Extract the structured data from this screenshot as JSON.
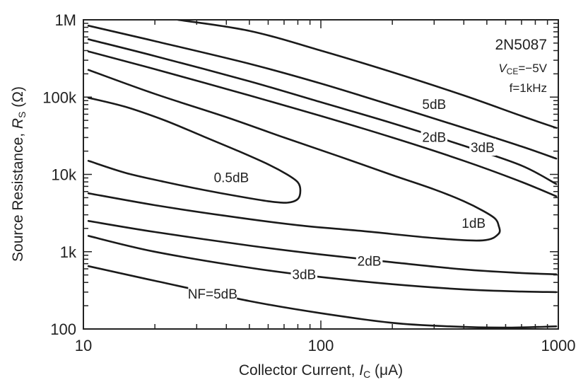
{
  "chart_data": {
    "type": "line",
    "title": "",
    "xlabel": "Collector Current, I_C (μA)",
    "ylabel": "Source Resistance, R_S (Ω)",
    "x_scale": "log",
    "y_scale": "log",
    "xlim": [
      10,
      1000
    ],
    "ylim": [
      100,
      1000000
    ],
    "grid": false,
    "x_tick_labels": [
      "10",
      "100",
      "1000"
    ],
    "y_tick_labels": [
      "100",
      "1k",
      "10k",
      "100k",
      "1M"
    ],
    "annotation": {
      "device": "2N5087",
      "vce_prefix": "V",
      "vce_sub": "CE",
      "vce_value": "=−5V",
      "freq": "f=1kHz"
    },
    "series": [
      {
        "label": "0.5dB",
        "x": [
          10.5,
          15,
          22,
          32,
          45,
          60,
          72,
          80,
          82,
          80,
          72,
          60,
          45,
          32,
          22,
          15,
          10.5
        ],
        "y": [
          15000,
          10500,
          8000,
          6300,
          5200,
          4500,
          4300,
          4800,
          6200,
          7900,
          10000,
          13500,
          20000,
          31000,
          50000,
          75000,
          98000
        ]
      },
      {
        "label": "1dB",
        "x": [
          10.5,
          20,
          40,
          80,
          150,
          300,
          480,
          560,
          560,
          540,
          480,
          400,
          300,
          200,
          120,
          70,
          40,
          20,
          10.5
        ],
        "y": [
          5700,
          4000,
          2900,
          2200,
          1850,
          1500,
          1400,
          1700,
          2200,
          2700,
          3400,
          4500,
          6400,
          9800,
          17000,
          30000,
          55000,
          110000,
          225000
        ]
      },
      {
        "label": "2dB",
        "x": [
          10.5,
          20,
          50,
          100,
          200,
          400,
          700,
          980
        ],
        "y": [
          2500,
          1800,
          1200,
          920,
          730,
          590,
          530,
          510
        ]
      },
      {
        "label": "2dB",
        "x": [
          10.5,
          20,
          50,
          100,
          200,
          400,
          700,
          980
        ],
        "y": [
          390000,
          230000,
          105000,
          57000,
          30000,
          15000,
          8000,
          5200
        ]
      },
      {
        "label": "3dB",
        "x": [
          10.5,
          20,
          50,
          100,
          200,
          400,
          700,
          980
        ],
        "y": [
          1600,
          1000,
          620,
          470,
          380,
          325,
          305,
          300
        ]
      },
      {
        "label": "3dB",
        "x": [
          10.5,
          20,
          50,
          100,
          200,
          400,
          700,
          980
        ],
        "y": [
          560000,
          340000,
          160000,
          86000,
          46000,
          23500,
          13000,
          7500
        ]
      },
      {
        "label": "NF=5dB",
        "x": [
          10.5,
          20,
          50,
          100,
          200,
          350,
          600,
          980
        ],
        "y": [
          650,
          420,
          230,
          160,
          120,
          108,
          104,
          108
        ]
      },
      {
        "label": "5dB",
        "x": [
          10.5,
          20,
          50,
          100,
          200,
          400,
          700,
          980
        ],
        "y": [
          840000,
          530000,
          270000,
          150000,
          78000,
          40000,
          23000,
          16000
        ]
      },
      {
        "label": "",
        "x": [
          25,
          50,
          100,
          200,
          400,
          700,
          980
        ],
        "y": [
          1000000,
          720000,
          400000,
          210000,
          105000,
          57000,
          40000
        ]
      }
    ],
    "contour_labels": [
      {
        "text": "0.5dB",
        "x": 42,
        "y": 9000
      },
      {
        "text": "1dB",
        "x": 440,
        "y": 2300
      },
      {
        "text": "2dB",
        "x": 300,
        "y": 30000
      },
      {
        "text": "3dB",
        "x": 480,
        "y": 22000
      },
      {
        "text": "5dB",
        "x": 300,
        "y": 80000
      },
      {
        "text": "2dB",
        "x": 160,
        "y": 750
      },
      {
        "text": "3dB",
        "x": 85,
        "y": 500
      },
      {
        "text": "NF=5dB",
        "x": 35,
        "y": 280
      }
    ]
  }
}
